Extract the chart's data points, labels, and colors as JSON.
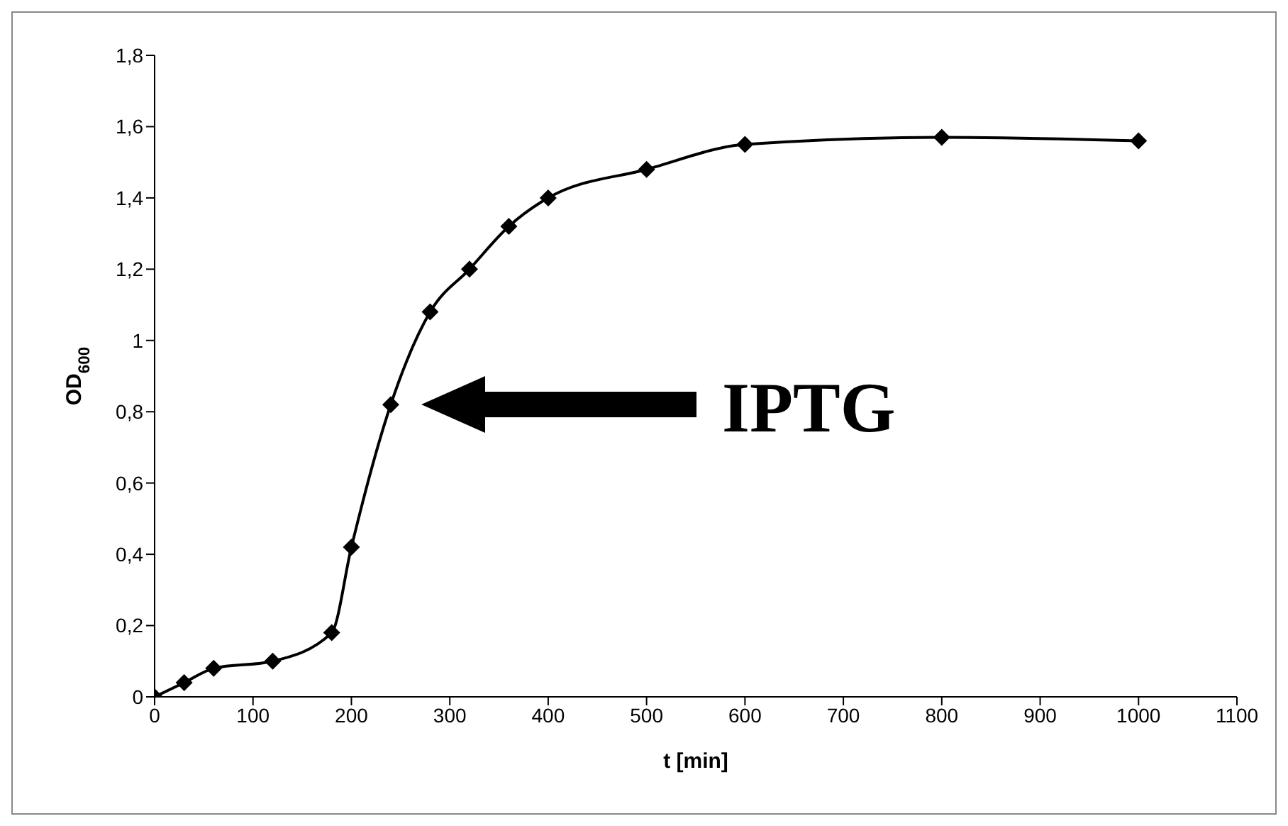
{
  "chart_data": {
    "type": "line",
    "xlabel": "t [min]",
    "ylabel": "OD$_{600}$",
    "x": [
      0,
      30,
      60,
      120,
      180,
      200,
      240,
      280,
      320,
      360,
      400,
      500,
      600,
      800,
      1000
    ],
    "series": [
      {
        "color": "#000000",
        "values": [
          0,
          0.04,
          0.08,
          0.1,
          0.18,
          0.42,
          0.82,
          1.08,
          1.2,
          1.32,
          1.4,
          1.48,
          1.55,
          1.57,
          1.56
        ]
      }
    ],
    "xlim": [
      0,
      1100
    ],
    "xticks": [
      0,
      100,
      200,
      300,
      400,
      500,
      600,
      700,
      800,
      900,
      1000,
      1100
    ],
    "ylim": [
      0,
      1.8
    ],
    "yticks": [
      0,
      {
        "value": 0.2,
        "label": "0,2"
      },
      {
        "value": 0.4,
        "label": "0,4"
      },
      {
        "value": 0.6,
        "label": "0,6"
      },
      {
        "value": 0.8,
        "label": "0,8"
      },
      1,
      {
        "value": 1.2,
        "label": "1,2"
      },
      {
        "value": 1.4,
        "label": "1,4"
      },
      {
        "value": 1.6,
        "label": "1,6"
      },
      {
        "value": 1.8,
        "label": "1,8"
      }
    ],
    "annotations": [
      "IPTG"
    ],
    "marker": "diamond",
    "line_style": "solid",
    "grid": false,
    "legend": false
  }
}
